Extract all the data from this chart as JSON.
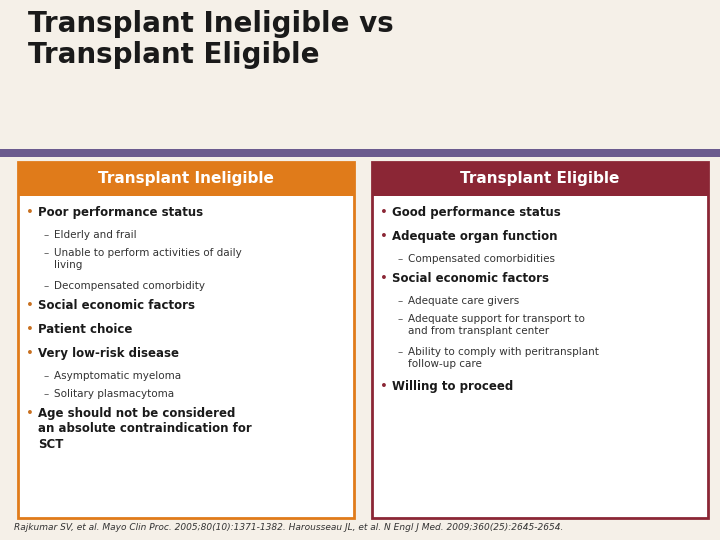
{
  "title": "Transplant Ineligible vs\nTransplant Eligible",
  "title_fontsize": 20,
  "title_color": "#1a1a1a",
  "bg_color": "#f5f0e8",
  "purple_bar_color": "#6b5b8e",
  "left_header": "Transplant Ineligible",
  "right_header": "Transplant Eligible",
  "left_header_bg": "#e07b1a",
  "right_header_bg": "#8b2635",
  "header_text_color": "#ffffff",
  "box_border_left": "#e07b1a",
  "box_border_right": "#8b2635",
  "box_bg": "#ffffff",
  "bullet_color_left": "#c87020",
  "bullet_color_right": "#8b2635",
  "left_items": [
    {
      "text": "Poor performance status",
      "bold": true,
      "level": 0,
      "lines": 1
    },
    {
      "text": "Elderly and frail",
      "bold": false,
      "level": 1,
      "lines": 1
    },
    {
      "text": "Unable to perform activities of daily\nliving",
      "bold": false,
      "level": 1,
      "lines": 2
    },
    {
      "text": "Decompensated comorbidity",
      "bold": false,
      "level": 1,
      "lines": 1
    },
    {
      "text": "Social economic factors",
      "bold": true,
      "level": 0,
      "lines": 1
    },
    {
      "text": "Patient choice",
      "bold": true,
      "level": 0,
      "lines": 1
    },
    {
      "text": "Very low-risk disease",
      "bold": true,
      "level": 0,
      "lines": 1
    },
    {
      "text": "Asymptomatic myeloma",
      "bold": false,
      "level": 1,
      "lines": 1
    },
    {
      "text": "Solitary plasmacytoma",
      "bold": false,
      "level": 1,
      "lines": 1
    },
    {
      "text": "Age should not be considered\nan absolute contraindication for\nSCT",
      "bold": true,
      "level": 0,
      "lines": 3
    }
  ],
  "right_items": [
    {
      "text": "Good performance status",
      "bold": true,
      "level": 0,
      "lines": 1
    },
    {
      "text": "Adequate organ function",
      "bold": true,
      "level": 0,
      "lines": 1
    },
    {
      "text": "Compensated comorbidities",
      "bold": false,
      "level": 1,
      "lines": 1
    },
    {
      "text": "Social economic factors",
      "bold": true,
      "level": 0,
      "lines": 1
    },
    {
      "text": "Adequate care givers",
      "bold": false,
      "level": 1,
      "lines": 1
    },
    {
      "text": "Adequate support for transport to\nand from transplant center",
      "bold": false,
      "level": 1,
      "lines": 2
    },
    {
      "text": "Ability to comply with peritransplant\nfollow-up care",
      "bold": false,
      "level": 1,
      "lines": 2
    },
    {
      "text": "Willing to proceed",
      "bold": true,
      "level": 0,
      "lines": 1
    }
  ],
  "footnote": "Rajkumar SV, et al. Mayo Clin Proc. 2005;80(10):1371-1382. Harousseau JL, et al. N Engl J Med. 2009;360(25):2645-2654.",
  "footnote_fontsize": 6.5
}
